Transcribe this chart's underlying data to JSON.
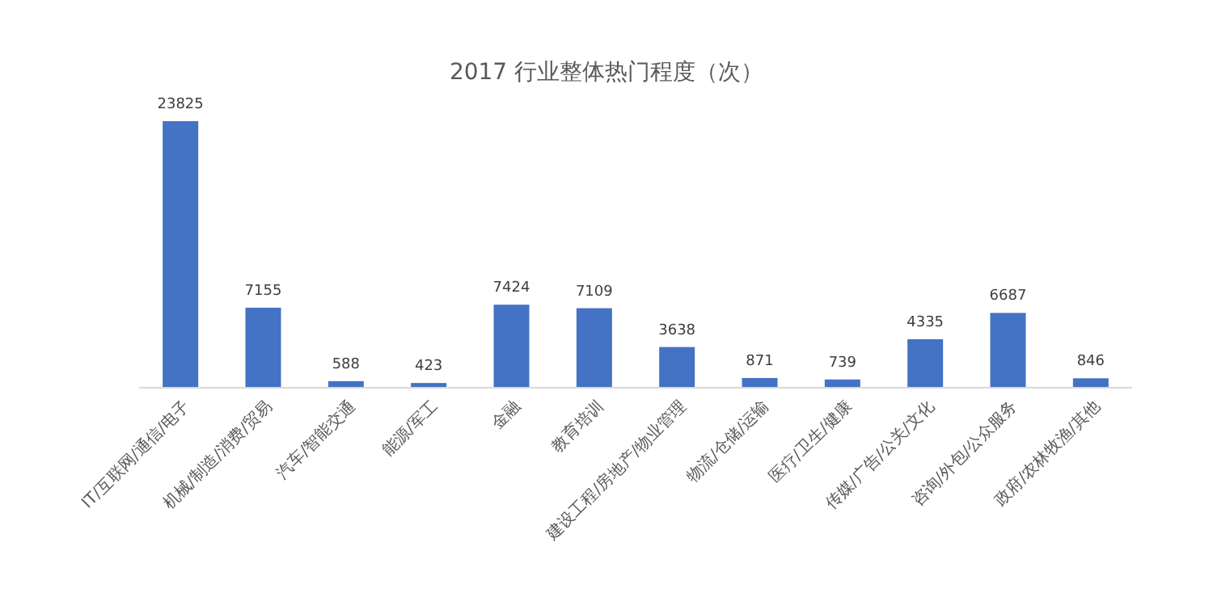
{
  "chart_data": {
    "type": "bar",
    "title": "2017 行业整体热门程度（次）",
    "categories": [
      "IT/互联网/通信/电子",
      "机械/制造/消费/贸易",
      "汽车/智能交通",
      "能源/军工",
      "金融",
      "教育培训",
      "建设工程/房地产/物业管理",
      "物流/仓储/运输",
      "医疗/卫生/健康",
      "传媒/广告/公关/文化",
      "咨询/外包/公众服务",
      "政府/农林牧渔/其他"
    ],
    "values": [
      23825,
      7155,
      588,
      423,
      7424,
      7109,
      3638,
      871,
      739,
      4335,
      6687,
      846
    ],
    "color": "#4472c4",
    "data_labels": true
  }
}
